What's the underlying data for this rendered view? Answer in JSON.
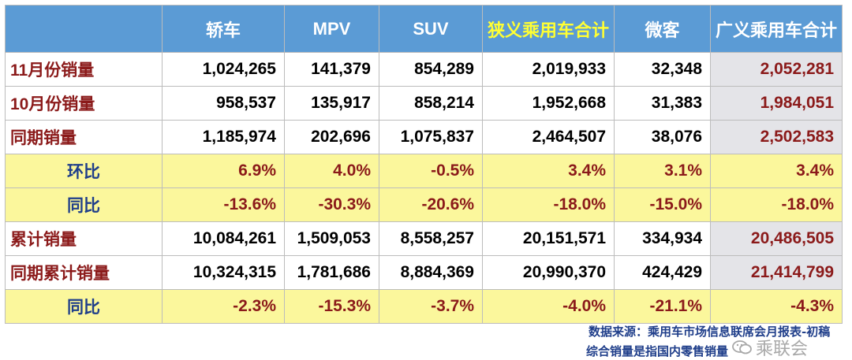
{
  "chart_data": {
    "type": "table",
    "columns": [
      "",
      "轿车",
      "MPV",
      "SUV",
      "狭义乘用车合计",
      "微客",
      "广义乘用车合计"
    ],
    "rows": [
      {
        "label": "11月份销量",
        "kind": "data",
        "values": [
          "1,024,265",
          "141,379",
          "854,289",
          "2,019,933",
          "32,348",
          "2,052,281"
        ]
      },
      {
        "label": "10月份销量",
        "kind": "data",
        "values": [
          "958,537",
          "135,917",
          "858,214",
          "1,952,668",
          "31,383",
          "1,984,051"
        ]
      },
      {
        "label": "同期销量",
        "kind": "data",
        "values": [
          "1,185,974",
          "202,696",
          "1,075,837",
          "2,464,507",
          "38,076",
          "2,502,583"
        ]
      },
      {
        "label": "环比",
        "kind": "pct",
        "values": [
          "6.9%",
          "4.0%",
          "-0.5%",
          "3.4%",
          "3.1%",
          "3.4%"
        ]
      },
      {
        "label": "同比",
        "kind": "pct",
        "values": [
          "-13.6%",
          "-30.3%",
          "-20.6%",
          "-18.0%",
          "-15.0%",
          "-18.0%"
        ]
      },
      {
        "label": "累计销量",
        "kind": "data",
        "values": [
          "10,084,261",
          "1,509,053",
          "8,558,257",
          "20,151,571",
          "334,934",
          "20,486,505"
        ]
      },
      {
        "label": "同期累计销量",
        "kind": "data",
        "values": [
          "10,324,315",
          "1,781,686",
          "8,884,369",
          "20,990,370",
          "424,429",
          "21,414,799"
        ]
      },
      {
        "label": "同比",
        "kind": "pct",
        "values": [
          "-2.3%",
          "-15.3%",
          "-3.7%",
          "-4.0%",
          "-21.1%",
          "-4.3%"
        ]
      }
    ]
  },
  "footnotes": {
    "source": "数据来源：乘用车市场信息联席会月报表-初稿",
    "note": "综合销量是指国内零售销量"
  },
  "watermark": {
    "text": "乘联会",
    "icon": "wechat-icon"
  },
  "colors": {
    "header_bg": "#5b9bd5",
    "header_highlight_text": "#ffff33",
    "pct_row_bg": "#fbf79c",
    "total_col_bg": "#e4e4e8",
    "label_text": "#8b1a1a",
    "pct_label_text": "#1f3e8a"
  }
}
